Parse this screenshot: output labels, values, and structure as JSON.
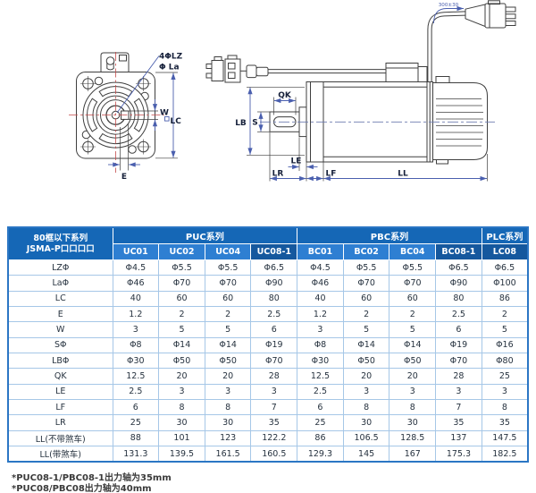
{
  "drawing": {
    "front_view": {
      "holes_label": "4ΦLZ",
      "bolt_circle_label": "Φ La",
      "key_width_label": "W",
      "flange_square_label": "LC",
      "key_offset_label": "E"
    },
    "side_view": {
      "pilot_dia_label": "LB",
      "shaft_dia_label": "S",
      "key_length_label": "QK",
      "le_label": "LE",
      "lr_label": "LR",
      "lf_label": "LF",
      "ll_label": "LL",
      "cable_length_label": "300±30"
    }
  },
  "table": {
    "corner": {
      "line1": "80框以下系列",
      "line2": "JSMA-P口口口口"
    },
    "groups": [
      {
        "label": "PUC系列",
        "span": 4
      },
      {
        "label": "PBC系列",
        "span": 4
      },
      {
        "label": "PLC系列",
        "span": 1
      }
    ],
    "models": [
      {
        "label": "UC01",
        "highlight": false
      },
      {
        "label": "UC02",
        "highlight": false
      },
      {
        "label": "UC04",
        "highlight": false
      },
      {
        "label": "UC08-1",
        "highlight": true
      },
      {
        "label": "BC01",
        "highlight": false
      },
      {
        "label": "BC02",
        "highlight": false
      },
      {
        "label": "BC04",
        "highlight": false
      },
      {
        "label": "BC08-1",
        "highlight": true
      },
      {
        "label": "LC08",
        "highlight": true
      }
    ],
    "rows": [
      {
        "label": "LZΦ",
        "values": [
          "Φ4.5",
          "Φ5.5",
          "Φ5.5",
          "Φ6.5",
          "Φ4.5",
          "Φ5.5",
          "Φ5.5",
          "Φ6.5",
          "Φ6.5"
        ]
      },
      {
        "label": "LaΦ",
        "values": [
          "Φ46",
          "Φ70",
          "Φ70",
          "Φ90",
          "Φ46",
          "Φ70",
          "Φ70",
          "Φ90",
          "Φ100"
        ]
      },
      {
        "label": "LC",
        "values": [
          "40",
          "60",
          "60",
          "80",
          "40",
          "60",
          "60",
          "80",
          "86"
        ]
      },
      {
        "label": "E",
        "values": [
          "1.2",
          "2",
          "2",
          "2.5",
          "1.2",
          "2",
          "2",
          "2.5",
          "2"
        ]
      },
      {
        "label": "W",
        "values": [
          "3",
          "5",
          "5",
          "6",
          "3",
          "5",
          "5",
          "6",
          "5"
        ]
      },
      {
        "label": "SΦ",
        "values": [
          "Φ8",
          "Φ14",
          "Φ14",
          "Φ19",
          "Φ8",
          "Φ14",
          "Φ14",
          "Φ19",
          "Φ16"
        ]
      },
      {
        "label": "LBΦ",
        "values": [
          "Φ30",
          "Φ50",
          "Φ50",
          "Φ70",
          "Φ30",
          "Φ50",
          "Φ50",
          "Φ70",
          "Φ80"
        ]
      },
      {
        "label": "QK",
        "values": [
          "12.5",
          "20",
          "20",
          "28",
          "12.5",
          "20",
          "20",
          "28",
          "25"
        ]
      },
      {
        "label": "LE",
        "values": [
          "2.5",
          "3",
          "3",
          "3",
          "2.5",
          "3",
          "3",
          "3",
          "3"
        ]
      },
      {
        "label": "LF",
        "values": [
          "6",
          "8",
          "8",
          "7",
          "6",
          "8",
          "8",
          "7",
          "8"
        ]
      },
      {
        "label": "LR",
        "values": [
          "25",
          "30",
          "30",
          "35",
          "25",
          "30",
          "30",
          "35",
          "35"
        ]
      },
      {
        "label": "LL(不带煞车)",
        "values": [
          "88",
          "101",
          "123",
          "122.2",
          "86",
          "106.5",
          "128.5",
          "137",
          "147.5"
        ]
      },
      {
        "label": "LL(带煞车)",
        "values": [
          "131.3",
          "139.5",
          "161.5",
          "160.5",
          "129.3",
          "145",
          "167",
          "175.3",
          "182.5"
        ]
      }
    ],
    "colors": {
      "header_bg": "#1567b6",
      "subheader_bg": "#2e7fd2",
      "subheader_highlight_bg": "#15589e",
      "border_outer": "#2b76c4",
      "border_inner": "#a6c7e7",
      "cell_text": "#26323f"
    }
  },
  "footnotes": [
    "*PUC08-1/PBC08-1出力轴为35mm",
    "*PUC08/PBC08出力轴为40mm"
  ]
}
